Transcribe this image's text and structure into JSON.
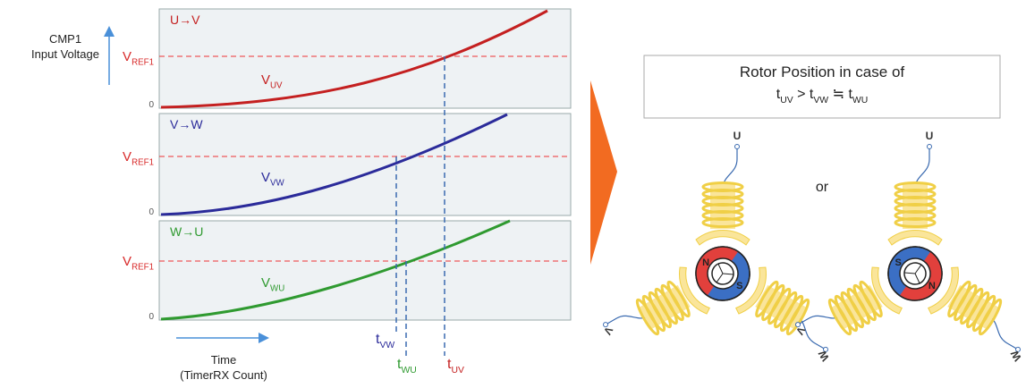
{
  "axis": {
    "y_label": [
      "CMP1",
      "Input Voltage"
    ],
    "x_label": [
      "Time",
      "(TimerRX Count)"
    ]
  },
  "panels": [
    {
      "label": "U→V",
      "ref": {
        "main": "V",
        "sub": "REF1"
      },
      "zero": "0",
      "curve": {
        "main": "V",
        "sub": "UV"
      }
    },
    {
      "label": "V→W",
      "ref": {
        "main": "V",
        "sub": "REF1"
      },
      "zero": "0",
      "curve": {
        "main": "V",
        "sub": "VW"
      }
    },
    {
      "label": "W→U",
      "ref": {
        "main": "V",
        "sub": "REF1"
      },
      "zero": "0",
      "curve": {
        "main": "V",
        "sub": "WU"
      }
    }
  ],
  "times": [
    {
      "main": "t",
      "sub": "VW"
    },
    {
      "main": "t",
      "sub": "WU"
    },
    {
      "main": "t",
      "sub": "UV"
    }
  ],
  "box": {
    "title": "Rotor Position in case of",
    "formula": [
      {
        "main": "t",
        "sub": "UV"
      },
      {
        "main": " > t",
        "sub": "VW"
      },
      {
        "main": " ≒ t",
        "sub": "WU"
      }
    ]
  },
  "separator": "or",
  "motors": [
    {
      "u": "U",
      "v": "V",
      "w": "W",
      "n": "N",
      "s": "S"
    },
    {
      "u": "U",
      "v": "V",
      "w": "W",
      "n": "N",
      "s": "S"
    }
  ]
}
